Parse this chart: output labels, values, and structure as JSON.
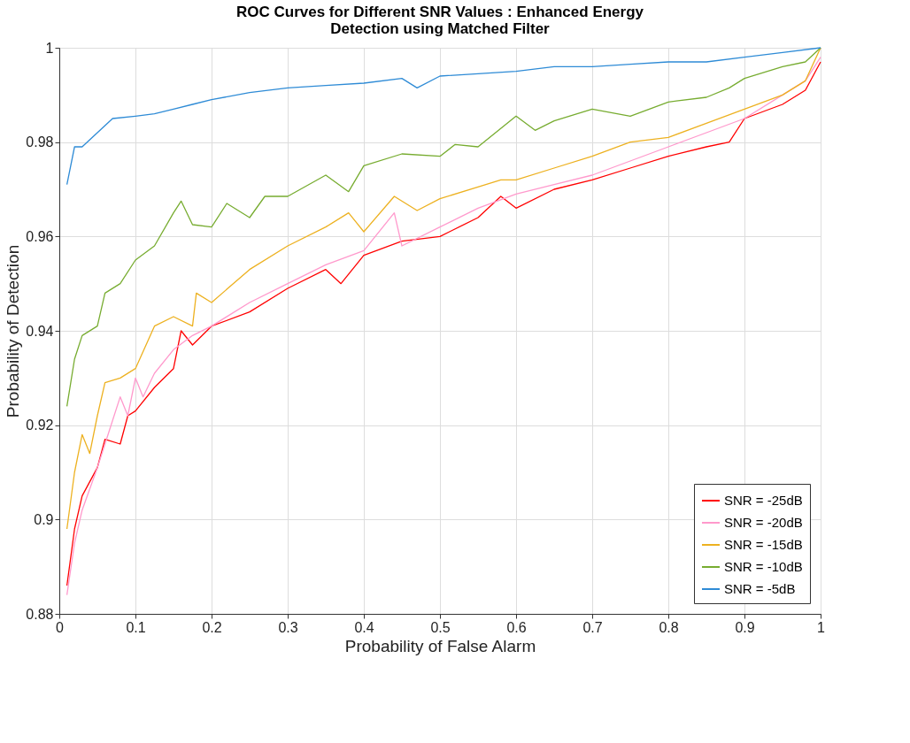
{
  "chart_data": {
    "type": "line",
    "title": "ROC Curves for Different SNR Values : Enhanced Energy Detection using Matched Filter",
    "xlabel": "Probability of False Alarm",
    "ylabel": "Probability of Detection",
    "xlim": [
      0,
      1
    ],
    "ylim": [
      0.88,
      1
    ],
    "xticks": [
      0,
      0.1,
      0.2,
      0.3,
      0.4,
      0.5,
      0.6,
      0.7,
      0.8,
      0.9,
      1
    ],
    "yticks": [
      0.88,
      0.9,
      0.92,
      0.94,
      0.96,
      0.98,
      1
    ],
    "grid": true,
    "legend": "bottom right",
    "marker": "none",
    "line_style": "solid",
    "series": [
      {
        "name": "SNR = -25dB",
        "color": "#ff0000",
        "x": [
          0.01,
          0.02,
          0.03,
          0.05,
          0.06,
          0.08,
          0.09,
          0.1,
          0.125,
          0.15,
          0.16,
          0.175,
          0.2,
          0.25,
          0.3,
          0.35,
          0.37,
          0.4,
          0.45,
          0.5,
          0.55,
          0.58,
          0.6,
          0.65,
          0.7,
          0.75,
          0.8,
          0.85,
          0.88,
          0.9,
          0.95,
          0.98,
          1
        ],
        "values": [
          0.886,
          0.898,
          0.905,
          0.911,
          0.917,
          0.916,
          0.922,
          0.923,
          0.928,
          0.932,
          0.94,
          0.937,
          0.941,
          0.944,
          0.949,
          0.953,
          0.95,
          0.956,
          0.959,
          0.96,
          0.964,
          0.9685,
          0.966,
          0.97,
          0.972,
          0.9745,
          0.977,
          0.979,
          0.98,
          0.985,
          0.988,
          0.991,
          0.997
        ]
      },
      {
        "name": "SNR = -20dB",
        "color": "#ff99cc",
        "x": [
          0.01,
          0.02,
          0.03,
          0.05,
          0.06,
          0.08,
          0.09,
          0.1,
          0.11,
          0.125,
          0.15,
          0.175,
          0.2,
          0.25,
          0.3,
          0.35,
          0.4,
          0.44,
          0.45,
          0.5,
          0.55,
          0.6,
          0.65,
          0.7,
          0.75,
          0.8,
          0.85,
          0.9,
          0.95,
          0.98,
          1
        ],
        "values": [
          0.884,
          0.895,
          0.902,
          0.911,
          0.916,
          0.926,
          0.922,
          0.93,
          0.926,
          0.931,
          0.936,
          0.939,
          0.941,
          0.946,
          0.95,
          0.954,
          0.957,
          0.965,
          0.958,
          0.962,
          0.966,
          0.969,
          0.971,
          0.973,
          0.976,
          0.979,
          0.982,
          0.985,
          0.99,
          0.993,
          0.998
        ]
      },
      {
        "name": "SNR = -15dB",
        "color": "#edb120",
        "x": [
          0.01,
          0.02,
          0.03,
          0.04,
          0.05,
          0.06,
          0.08,
          0.1,
          0.125,
          0.15,
          0.175,
          0.18,
          0.2,
          0.25,
          0.3,
          0.35,
          0.38,
          0.4,
          0.44,
          0.47,
          0.5,
          0.55,
          0.58,
          0.6,
          0.65,
          0.7,
          0.75,
          0.8,
          0.85,
          0.9,
          0.95,
          0.98,
          1
        ],
        "values": [
          0.898,
          0.91,
          0.918,
          0.914,
          0.922,
          0.929,
          0.93,
          0.932,
          0.941,
          0.943,
          0.941,
          0.948,
          0.946,
          0.953,
          0.958,
          0.962,
          0.965,
          0.961,
          0.9685,
          0.9655,
          0.968,
          0.9705,
          0.972,
          0.972,
          0.9745,
          0.977,
          0.98,
          0.981,
          0.984,
          0.987,
          0.99,
          0.993,
          1
        ]
      },
      {
        "name": "SNR = -10dB",
        "color": "#77ac30",
        "x": [
          0.01,
          0.02,
          0.03,
          0.05,
          0.06,
          0.08,
          0.1,
          0.125,
          0.15,
          0.16,
          0.175,
          0.2,
          0.22,
          0.25,
          0.27,
          0.3,
          0.35,
          0.38,
          0.4,
          0.45,
          0.5,
          0.52,
          0.55,
          0.6,
          0.625,
          0.65,
          0.7,
          0.75,
          0.8,
          0.85,
          0.88,
          0.9,
          0.95,
          0.98,
          1
        ],
        "values": [
          0.924,
          0.934,
          0.939,
          0.941,
          0.948,
          0.95,
          0.955,
          0.958,
          0.965,
          0.9675,
          0.9625,
          0.962,
          0.967,
          0.964,
          0.9685,
          0.9685,
          0.973,
          0.9695,
          0.975,
          0.9775,
          0.977,
          0.9795,
          0.979,
          0.9855,
          0.9825,
          0.9845,
          0.987,
          0.9855,
          0.9885,
          0.9895,
          0.9915,
          0.9935,
          0.996,
          0.997,
          1
        ]
      },
      {
        "name": "SNR = -5dB",
        "color": "#2e8bd6",
        "x": [
          0.01,
          0.02,
          0.03,
          0.05,
          0.07,
          0.1,
          0.125,
          0.15,
          0.175,
          0.2,
          0.25,
          0.3,
          0.35,
          0.4,
          0.45,
          0.47,
          0.5,
          0.55,
          0.6,
          0.65,
          0.7,
          0.75,
          0.8,
          0.85,
          0.9,
          0.95,
          1
        ],
        "values": [
          0.971,
          0.979,
          0.979,
          0.982,
          0.985,
          0.9855,
          0.986,
          0.987,
          0.988,
          0.989,
          0.9905,
          0.9915,
          0.992,
          0.9925,
          0.9935,
          0.9915,
          0.994,
          0.9945,
          0.995,
          0.996,
          0.996,
          0.9965,
          0.997,
          0.997,
          0.998,
          0.999,
          1
        ]
      }
    ]
  }
}
